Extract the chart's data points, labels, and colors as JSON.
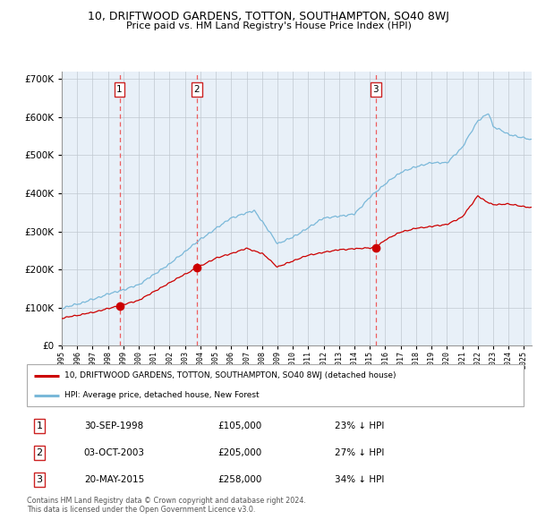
{
  "title": "10, DRIFTWOOD GARDENS, TOTTON, SOUTHAMPTON, SO40 8WJ",
  "subtitle": "Price paid vs. HM Land Registry's House Price Index (HPI)",
  "xlim_start": 1995.0,
  "xlim_end": 2025.5,
  "ylim_min": 0,
  "ylim_max": 720000,
  "sale_dates_decimal": [
    1998.75,
    2003.75,
    2015.38
  ],
  "sale_prices": [
    105000,
    205000,
    258000
  ],
  "sale_labels": [
    "1",
    "2",
    "3"
  ],
  "legend_red": "10, DRIFTWOOD GARDENS, TOTTON, SOUTHAMPTON, SO40 8WJ (detached house)",
  "legend_blue": "HPI: Average price, detached house, New Forest",
  "table_rows": [
    [
      "1",
      "30-SEP-1998",
      "£105,000",
      "23% ↓ HPI"
    ],
    [
      "2",
      "03-OCT-2003",
      "£205,000",
      "27% ↓ HPI"
    ],
    [
      "3",
      "20-MAY-2015",
      "£258,000",
      "34% ↓ HPI"
    ]
  ],
  "footnote1": "Contains HM Land Registry data © Crown copyright and database right 2024.",
  "footnote2": "This data is licensed under the Open Government Licence v3.0.",
  "red_color": "#cc0000",
  "blue_color": "#7ab8d9",
  "plot_bg_color": "#e8f0f8",
  "grid_color": "#c0c8d0",
  "dashed_line_color": "#ee4444",
  "hpi_key_x": [
    1995,
    1996,
    1997,
    1998,
    2000,
    2002,
    2004,
    2006,
    2007.5,
    2009,
    2010,
    2012,
    2014,
    2015,
    2016,
    2017,
    2018,
    2019,
    2020,
    2021,
    2022,
    2022.7,
    2023,
    2024,
    2025.5
  ],
  "hpi_key_y": [
    97000,
    110000,
    122000,
    135000,
    160000,
    215000,
    280000,
    335000,
    355000,
    268000,
    285000,
    335000,
    345000,
    390000,
    425000,
    455000,
    470000,
    480000,
    480000,
    520000,
    590000,
    610000,
    575000,
    555000,
    540000
  ],
  "red_key_x": [
    1995,
    1996,
    1997,
    1998.75,
    2000,
    2002,
    2003.75,
    2005,
    2007,
    2008,
    2009,
    2011,
    2013,
    2015.38,
    2016,
    2017,
    2018,
    2019,
    2020,
    2021,
    2022,
    2022.5,
    2023,
    2024,
    2025.5
  ],
  "red_key_y": [
    72000,
    80000,
    88000,
    105000,
    120000,
    165000,
    205000,
    230000,
    255000,
    242000,
    207000,
    238000,
    252000,
    258000,
    278000,
    298000,
    308000,
    313000,
    318000,
    338000,
    393000,
    380000,
    370000,
    372000,
    362000
  ]
}
